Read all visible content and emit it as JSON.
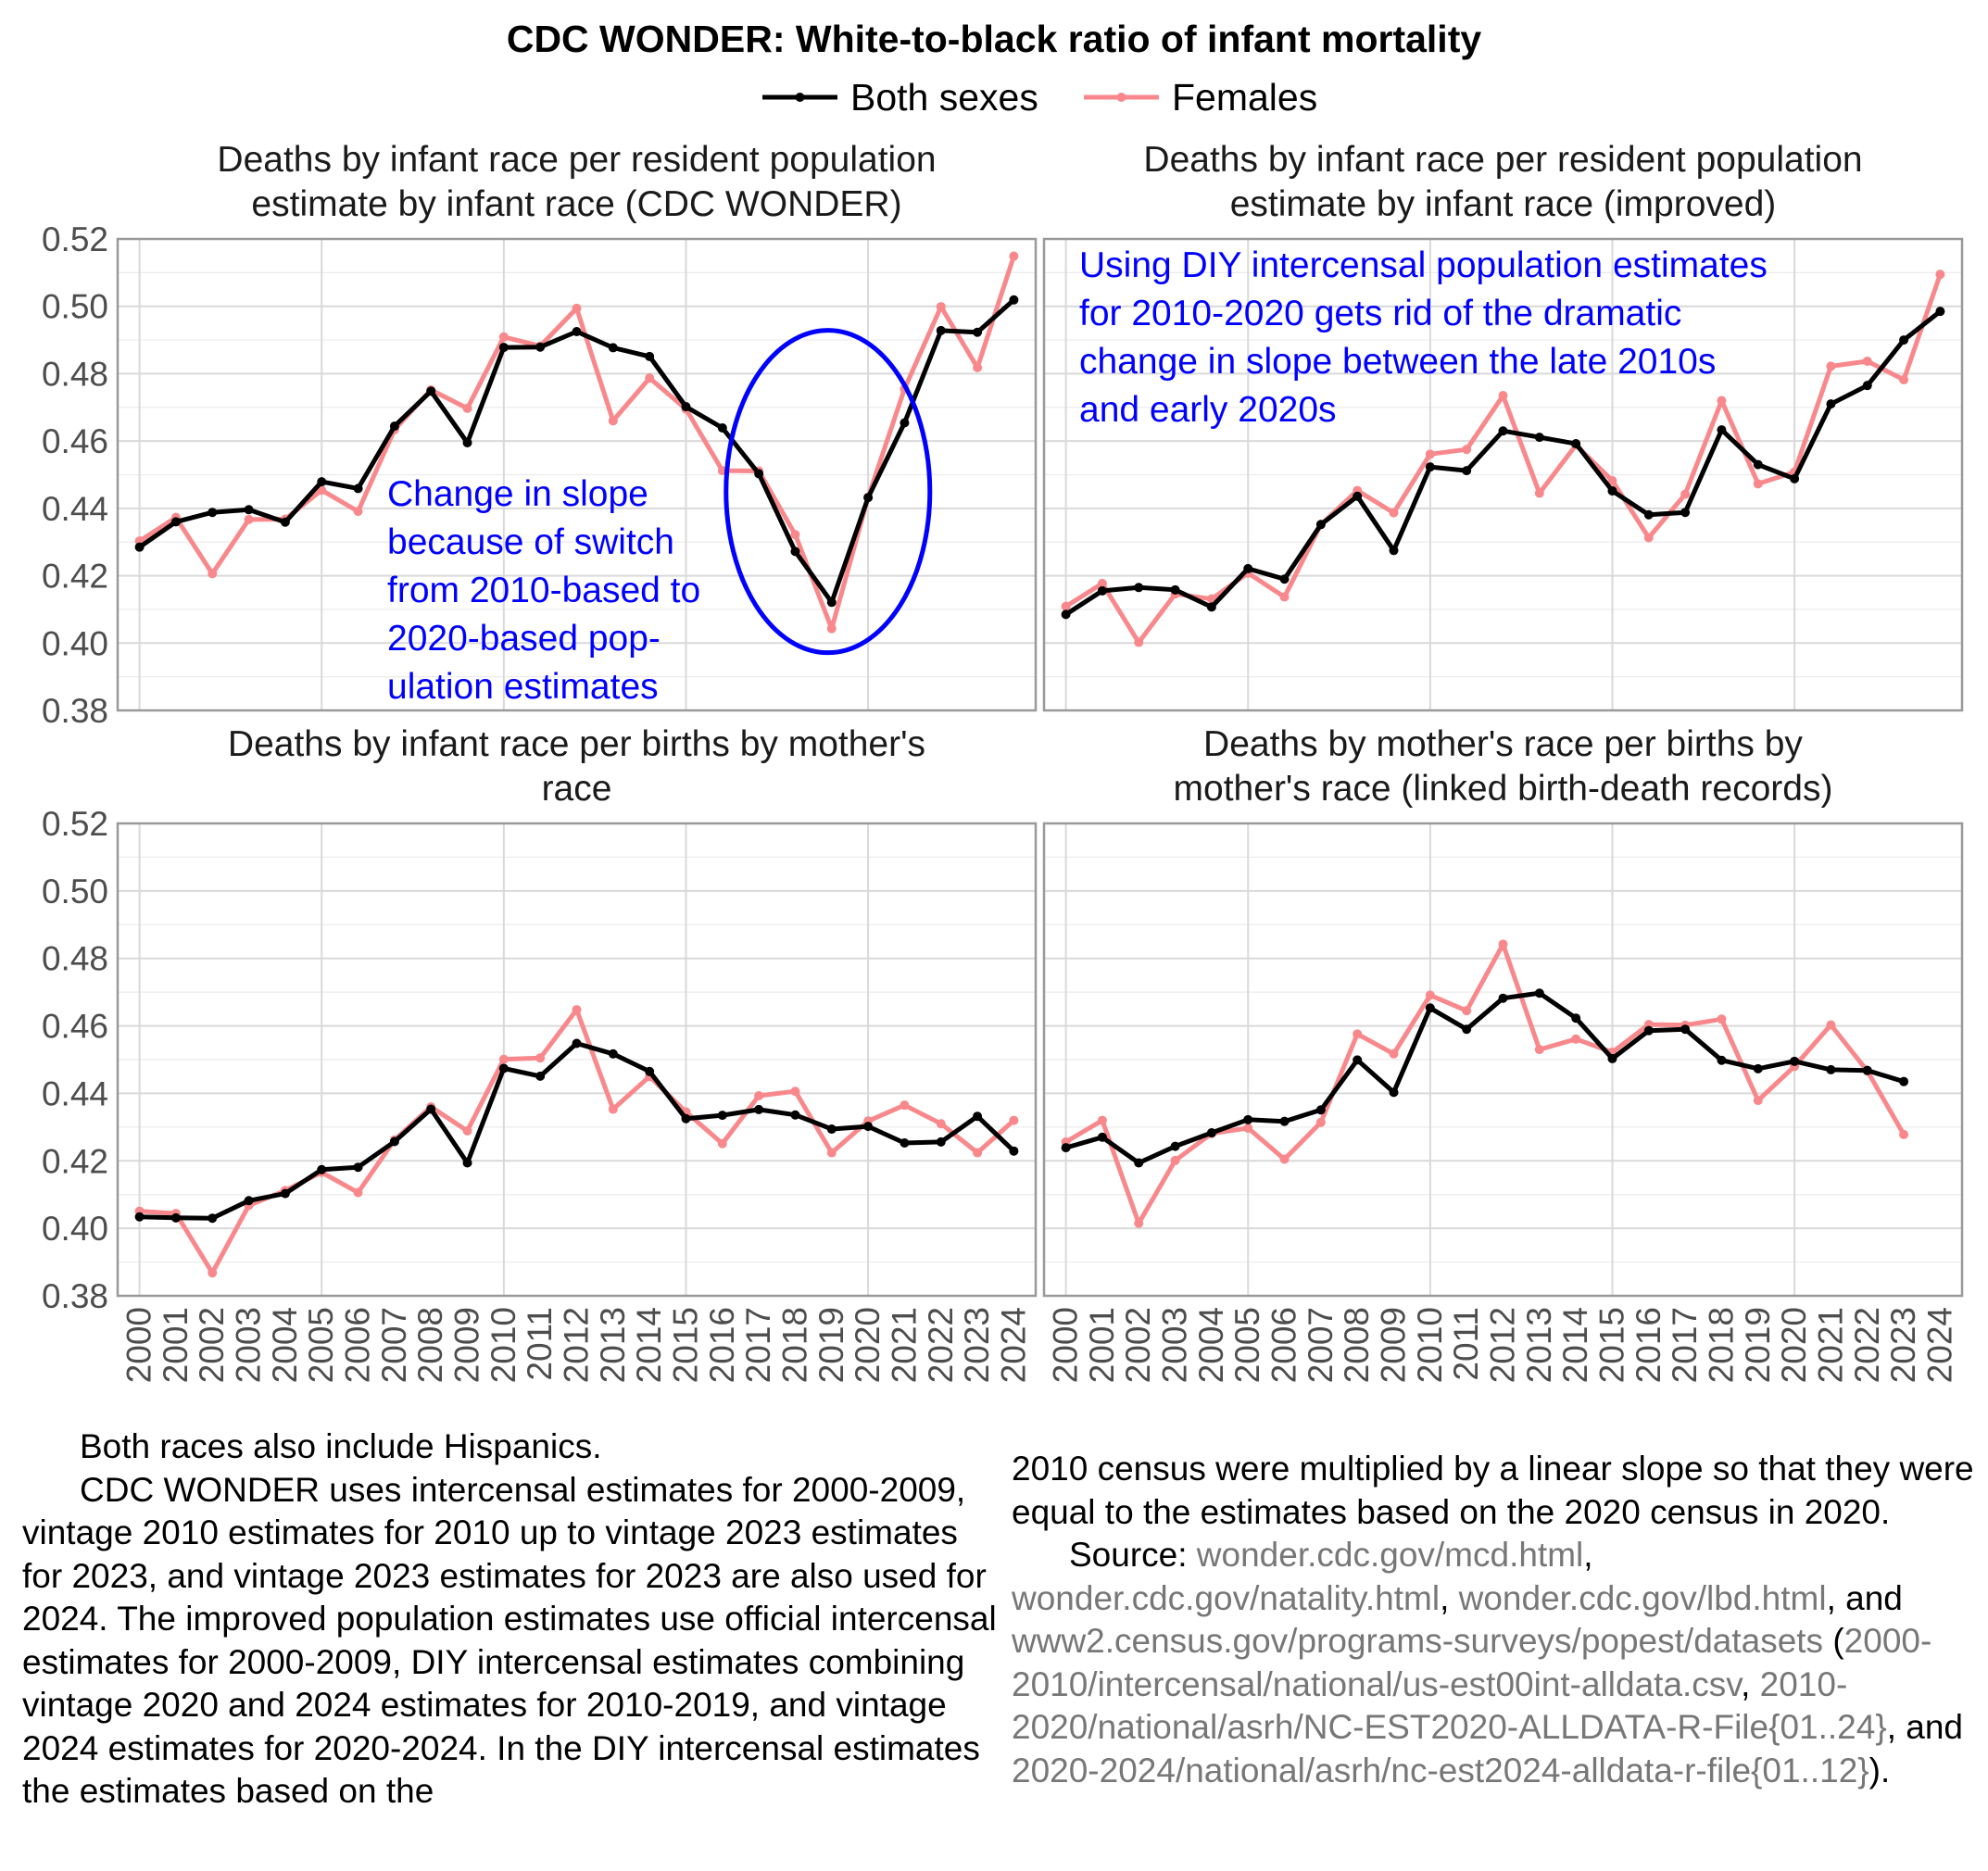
{
  "chart_data": {
    "type": "line",
    "title": "CDC WONDER: White-to-black ratio of infant mortality",
    "legend": {
      "position": "top",
      "items": [
        {
          "name": "Both sexes",
          "color": "#000000"
        },
        {
          "name": "Females",
          "color": "#f8888b"
        }
      ]
    },
    "x": [
      "2000",
      "2001",
      "2002",
      "2003",
      "2004",
      "2005",
      "2006",
      "2007",
      "2008",
      "2009",
      "2010",
      "2011",
      "2012",
      "2013",
      "2014",
      "2015",
      "2016",
      "2017",
      "2018",
      "2019",
      "2020",
      "2021",
      "2022",
      "2023",
      "2024"
    ],
    "ylim": [
      0.38,
      0.52
    ],
    "yticks": [
      "0.38",
      "0.40",
      "0.42",
      "0.44",
      "0.46",
      "0.48",
      "0.50",
      "0.52"
    ],
    "panels": [
      {
        "title_lines": [
          "Deaths by infant race per resident population",
          "estimate by infant race (CDC WONDER)"
        ],
        "series": [
          {
            "name": "Both sexes",
            "values": [
              0.4285,
              0.436,
              0.4388,
              0.4396,
              0.4359,
              0.4479,
              0.4459,
              0.4644,
              0.4748,
              0.4595,
              0.4878,
              0.4879,
              0.4925,
              0.4877,
              0.4851,
              0.4702,
              0.4639,
              0.4503,
              0.4272,
              0.4121,
              0.4432,
              0.4654,
              0.4928,
              0.4923,
              0.5019
            ]
          },
          {
            "name": "Females",
            "values": [
              0.4303,
              0.4373,
              0.4206,
              0.4367,
              0.4368,
              0.4454,
              0.4391,
              0.4634,
              0.4752,
              0.4697,
              0.4909,
              0.4882,
              0.4994,
              0.466,
              0.4787,
              0.4695,
              0.4512,
              0.4511,
              0.4322,
              0.4043,
              0.4433,
              0.4755,
              0.4999,
              0.4818,
              0.5149
            ]
          }
        ],
        "annotations": [
          {
            "lines": [
              "Change in slope",
              "because of switch",
              "from 2010-based to",
              "2020-based pop-",
              "ulation estimates"
            ],
            "color": "#0000ff"
          }
        ],
        "highlight_ellipse": {
          "x_center": "2019",
          "y_center": 0.445,
          "color": "#0000ff"
        }
      },
      {
        "title_lines": [
          "Deaths by infant race per resident population",
          "estimate by infant race (improved)"
        ],
        "series": [
          {
            "name": "Both sexes",
            "values": [
              0.4085,
              0.4155,
              0.4165,
              0.4158,
              0.4107,
              0.4221,
              0.419,
              0.4352,
              0.4436,
              0.4275,
              0.4523,
              0.4512,
              0.463,
              0.4611,
              0.4592,
              0.4452,
              0.4381,
              0.4388,
              0.4633,
              0.453,
              0.4488,
              0.471,
              0.4765,
              0.49,
              0.4985
            ]
          },
          {
            "name": "Females",
            "values": [
              0.4109,
              0.4177,
              0.4002,
              0.4146,
              0.4131,
              0.4208,
              0.4137,
              0.4352,
              0.4453,
              0.4387,
              0.4561,
              0.4575,
              0.4735,
              0.4445,
              0.4588,
              0.4482,
              0.4313,
              0.4442,
              0.472,
              0.4473,
              0.4508,
              0.4822,
              0.4837,
              0.4782,
              0.5095
            ]
          }
        ],
        "annotations": [
          {
            "lines": [
              "Using DIY intercensal population estimates",
              "for 2010-2020 gets rid of the dramatic",
              "change in slope between the late 2010s",
              "and early 2020s"
            ],
            "color": "#0000ff"
          }
        ]
      },
      {
        "title_lines": [
          "Deaths by infant race per births by mother's",
          "race"
        ],
        "series": [
          {
            "name": "Both sexes",
            "values": [
              0.4034,
              0.4031,
              0.403,
              0.4082,
              0.4103,
              0.4174,
              0.4181,
              0.4257,
              0.4353,
              0.4194,
              0.4474,
              0.4451,
              0.4548,
              0.4517,
              0.4465,
              0.4325,
              0.4335,
              0.4352,
              0.4336,
              0.4294,
              0.4302,
              0.4253,
              0.4256,
              0.4332,
              0.4229
            ]
          },
          {
            "name": "Females",
            "values": [
              0.4051,
              0.4044,
              0.3868,
              0.4068,
              0.4112,
              0.4166,
              0.4106,
              0.4262,
              0.436,
              0.4289,
              0.4501,
              0.4505,
              0.4648,
              0.4353,
              0.445,
              0.4345,
              0.4251,
              0.4393,
              0.4406,
              0.4224,
              0.4318,
              0.4365,
              0.431,
              0.4224,
              0.432
            ]
          }
        ]
      },
      {
        "title_lines": [
          "Deaths by mother's race per births by",
          "mother's race (linked birth-death records)"
        ],
        "series": [
          {
            "name": "Both sexes",
            "values": [
              0.4239,
              0.427,
              0.4194,
              0.4243,
              0.4283,
              0.4322,
              0.4317,
              0.4351,
              0.4499,
              0.4403,
              0.4653,
              0.459,
              0.4682,
              0.4697,
              0.4623,
              0.4503,
              0.4586,
              0.459,
              0.4498,
              0.4473,
              0.4495,
              0.447,
              0.4468,
              0.4435
            ]
          },
          {
            "name": "Females",
            "values": [
              0.4256,
              0.432,
              0.4015,
              0.4201,
              0.4281,
              0.4297,
              0.4205,
              0.4314,
              0.4576,
              0.4517,
              0.4691,
              0.4645,
              0.4842,
              0.453,
              0.4561,
              0.4522,
              0.4604,
              0.4602,
              0.462,
              0.4379,
              0.448,
              0.4603,
              0.4466,
              0.4278
            ]
          }
        ]
      }
    ]
  },
  "notes": {
    "left": [
      "Both races also include Hispanics.",
      "CDC WONDER uses intercensal estimates for 2000-2009, vintage 2010 estimates for 2010 up to vintage 2023 estimates for 2023, and vintage 2023 estimates for 2023 are also used for 2024. The improved population estimates use official intercensal estimates for 2000-2009, DIY intercensal estimates combining vintage 2020 and 2024 estimates for 2010-2019, and vintage 2024 estimates for 2020-2024. In the DIY intercensal estimates the estimates based on the"
    ],
    "right_cont": "2010 census were multiplied by a linear slope so that they were equal to the estimates based on the 2020 census in 2020.",
    "source": {
      "label": "Source: ",
      "link1": "wonder.cdc.gov/mcd.html",
      "sep1": ", ",
      "link2": "wonder.cdc.gov/natality.html",
      "sep2": ", ",
      "link3": "wonder.cdc.gov/lbd.html",
      "sep3": ", and ",
      "link4": "www2.census.gov/programs-surveys/popest/datasets",
      "sep4": " (",
      "link5": "2000-2010/intercensal/national/us-est00int-alldata.csv",
      "sep5": ", ",
      "link6": "2010-2020/national/asrh/NC-EST2020-ALLDATA-R-File{01..24}",
      "sep6": ", and ",
      "link7": "2020-2024/national/asrh/nc-est2024-alldata-r-file{01..12}",
      "sep7": ")."
    }
  }
}
